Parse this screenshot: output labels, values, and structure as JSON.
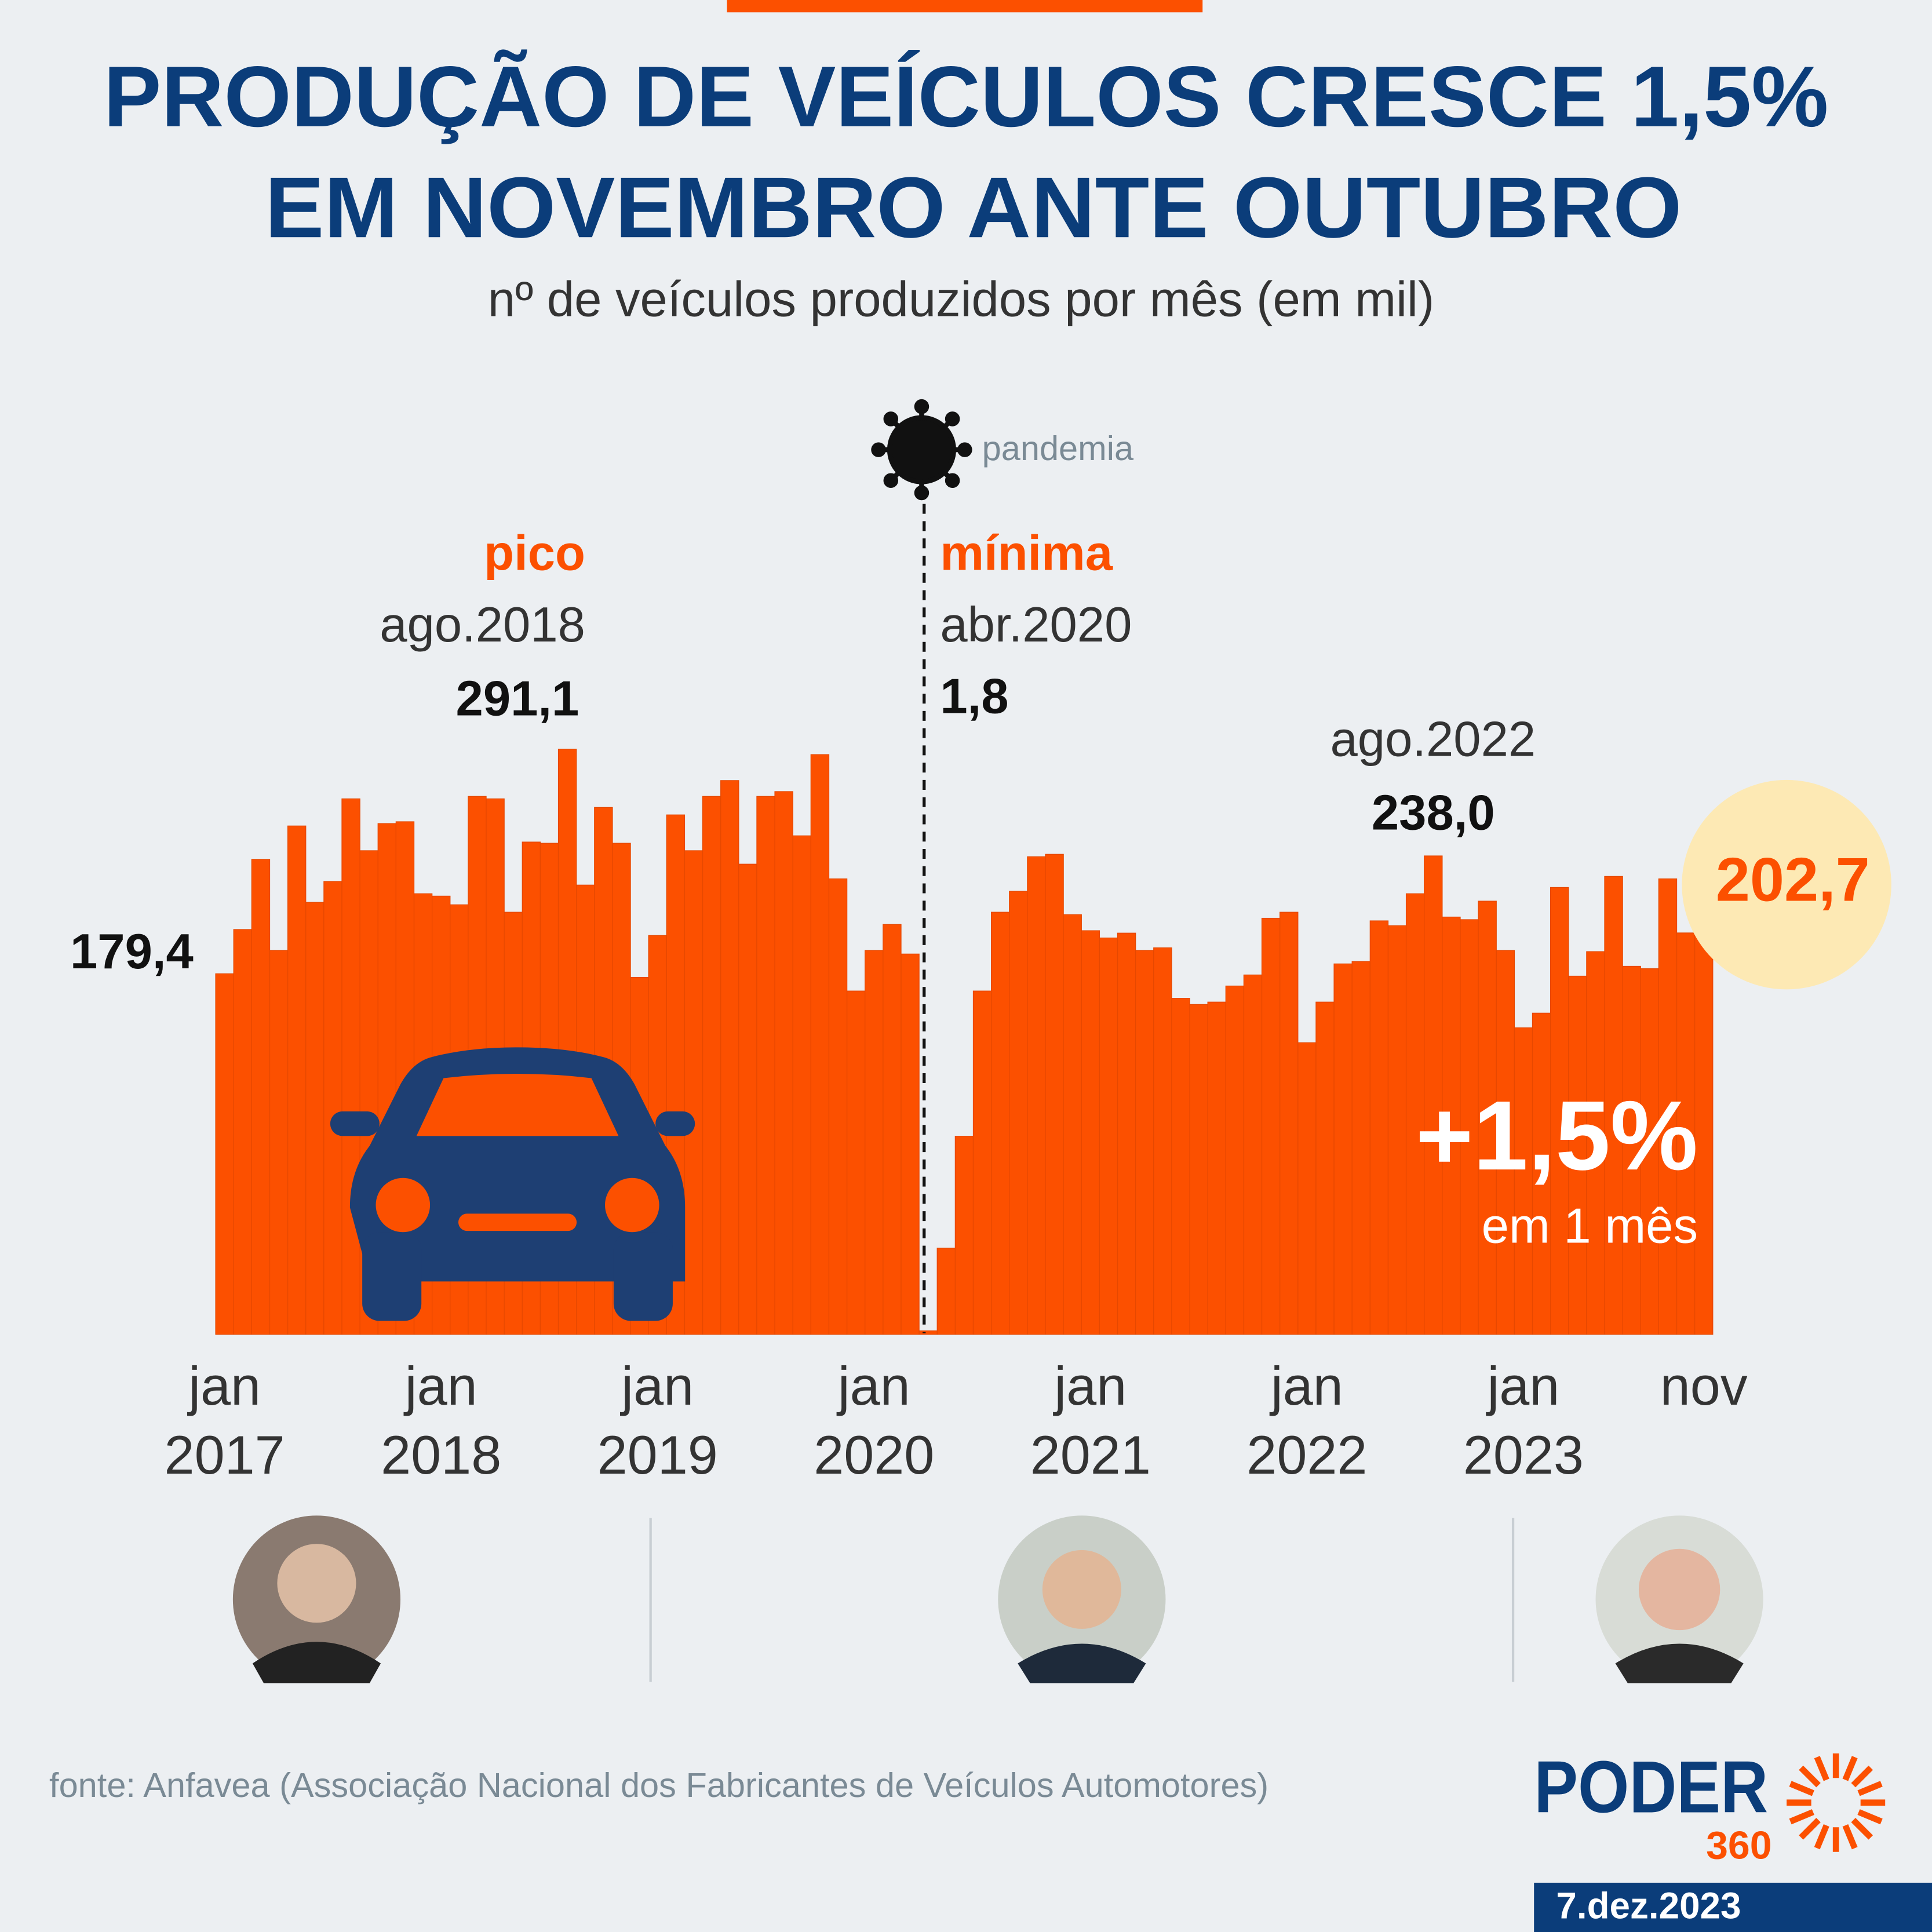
{
  "chart_data": {
    "type": "bar",
    "title": [
      "PRODUÇÃO DE VEÍCULOS CRESCE 1,5%",
      "EM NOVEMBRO ANTE OUTUBRO"
    ],
    "subtitle": "nº de veículos produzidos por mês (em mil)",
    "color": "#fc5000",
    "categories": [
      "jan\n2017",
      null,
      null,
      null,
      null,
      null,
      null,
      null,
      null,
      null,
      null,
      null,
      "jan\n2018",
      null,
      null,
      null,
      null,
      null,
      null,
      null,
      null,
      null,
      null,
      null,
      "jan\n2019",
      null,
      null,
      null,
      null,
      null,
      null,
      null,
      null,
      null,
      null,
      null,
      "jan\n2020",
      null,
      null,
      null,
      null,
      null,
      null,
      null,
      null,
      null,
      null,
      null,
      "jan\n2021",
      null,
      null,
      null,
      null,
      null,
      null,
      null,
      null,
      null,
      null,
      null,
      "jan\n2022",
      null,
      null,
      null,
      null,
      null,
      null,
      null,
      null,
      null,
      null,
      null,
      "jan\n2023",
      null,
      null,
      null,
      null,
      null,
      null,
      null,
      null,
      null,
      "nov"
    ],
    "values": [
      179.4,
      201.4,
      236.3,
      191.0,
      252.9,
      214.9,
      225.3,
      266.4,
      240.6,
      254.1,
      255.0,
      219.2,
      218.0,
      213.7,
      267.6,
      266.4,
      210.0,
      244.9,
      244.3,
      291.1,
      223.5,
      262.1,
      244.3,
      177.6,
      198.4,
      258.4,
      240.6,
      267.6,
      275.5,
      233.9,
      267.6,
      270.0,
      248.0,
      288.4,
      226.6,
      170.8,
      191.0,
      203.9,
      189.2,
      1.8,
      42.9,
      98.6,
      170.8,
      210.0,
      220.4,
      237.6,
      238.8,
      208.8,
      200.8,
      197.2,
      199.6,
      191.0,
      192.3,
      167.2,
      164.1,
      165.3,
      173.3,
      178.8,
      207.0,
      210.0,
      145.1,
      165.3,
      184.3,
      185.5,
      205.7,
      203.3,
      219.2,
      238.0,
      207.6,
      206.3,
      215.5,
      191.0,
      152.5,
      159.8,
      222.3,
      178.2,
      190.4,
      227.8,
      183.1,
      181.9,
      226.6,
      199.7,
      202.7
    ],
    "value_labels": [
      "179,4",
      null,
      null,
      null,
      null,
      null,
      null,
      null,
      null,
      null,
      null,
      null,
      null,
      null,
      null,
      null,
      null,
      null,
      null,
      "291,1",
      null,
      null,
      null,
      null,
      null,
      null,
      null,
      null,
      null,
      null,
      null,
      null,
      null,
      null,
      null,
      null,
      null,
      null,
      null,
      "1,8",
      null,
      null,
      null,
      null,
      null,
      null,
      null,
      null,
      null,
      null,
      null,
      null,
      null,
      null,
      null,
      null,
      null,
      null,
      null,
      null,
      null,
      null,
      null,
      null,
      null,
      null,
      null,
      "238,0",
      null,
      null,
      null,
      null,
      null,
      null,
      null,
      null,
      null,
      null,
      null,
      null,
      null,
      null,
      "202,7"
    ],
    "annotations": {
      "pandemic": "pandemia",
      "peak": "pico",
      "peak_date": "ago.2018",
      "low": "mínima",
      "low_date": "abr.2020",
      "recent_date": "ago.2022",
      "change": "+1,5%",
      "change_note": "em 1 mês"
    }
  },
  "source": "fonte: Anfavea (Associação Nacional dos Fabricantes de Veículos Automotores)",
  "brand": {
    "name": "PODER",
    "number": "360"
  },
  "date": "7.dez.2023"
}
